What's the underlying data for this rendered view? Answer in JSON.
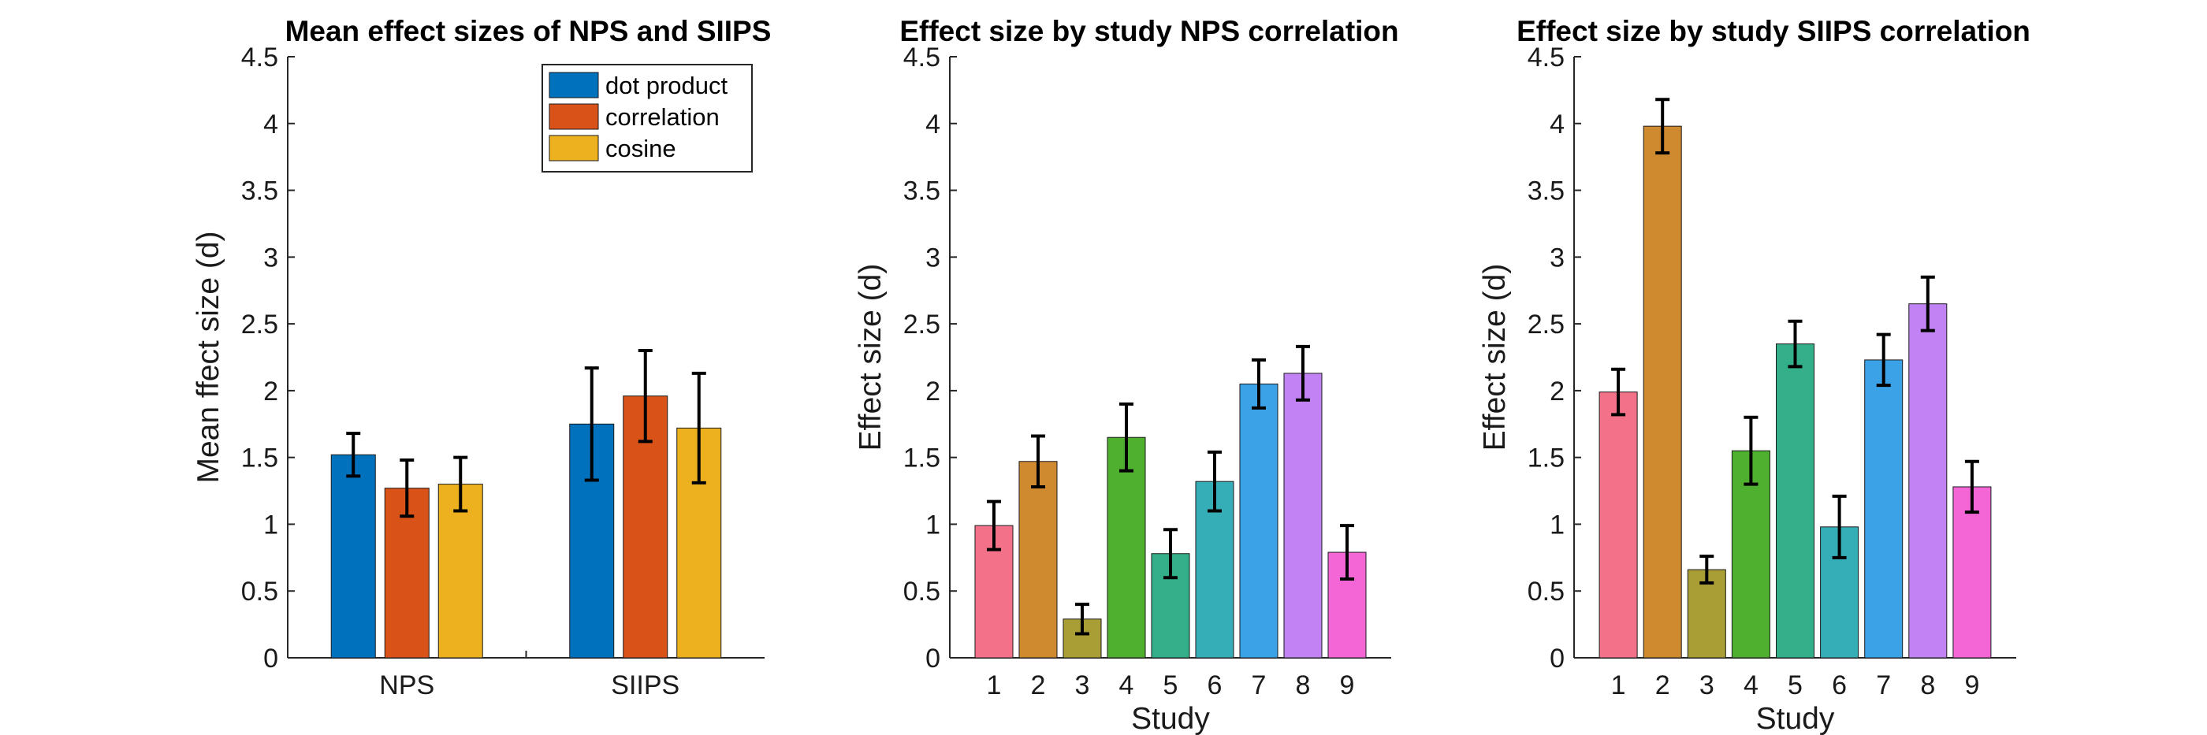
{
  "chart_data": [
    {
      "type": "bar",
      "title": "Mean effect sizes of NPS and SIIPS",
      "xlabel": "",
      "ylabel": "Mean ffect size (d)",
      "ylim": [
        0,
        4.5
      ],
      "yticks": [
        "0",
        "0.5",
        "1",
        "1.5",
        "2",
        "2.5",
        "3",
        "3.5",
        "4",
        "4.5"
      ],
      "categories": [
        "NPS",
        "SIIPS"
      ],
      "series": [
        {
          "name": "dot product",
          "color": "#0072BD",
          "values": [
            1.52,
            1.75
          ],
          "err": [
            0.16,
            0.42
          ]
        },
        {
          "name": "correlation",
          "color": "#D95319",
          "values": [
            1.27,
            1.96
          ],
          "err": [
            0.21,
            0.34
          ]
        },
        {
          "name": "cosine",
          "color": "#EDB120",
          "values": [
            1.3,
            1.72
          ],
          "err": [
            0.2,
            0.41
          ]
        }
      ],
      "legend": "top-right",
      "grid": false
    },
    {
      "type": "bar",
      "title": "Effect size by study NPS correlation",
      "xlabel": "Study",
      "ylabel": "Effect size (d)",
      "ylim": [
        0,
        4.5
      ],
      "yticks": [
        "0",
        "0.5",
        "1",
        "1.5",
        "2",
        "2.5",
        "3",
        "3.5",
        "4",
        "4.5"
      ],
      "categories": [
        "1",
        "2",
        "3",
        "4",
        "5",
        "6",
        "7",
        "8",
        "9"
      ],
      "values": [
        0.99,
        1.47,
        0.29,
        1.65,
        0.78,
        1.32,
        2.05,
        2.13,
        0.79
      ],
      "err": [
        0.18,
        0.19,
        0.11,
        0.25,
        0.18,
        0.22,
        0.18,
        0.2,
        0.2
      ],
      "colors": [
        "#F47289",
        "#CF8A30",
        "#A89E35",
        "#4FB030",
        "#33B08A",
        "#36AEB8",
        "#3CA2E8",
        "#C183F3",
        "#F466D6"
      ],
      "grid": false
    },
    {
      "type": "bar",
      "title": "Effect size by study SIIPS correlation",
      "xlabel": "Study",
      "ylabel": "Effect size (d)",
      "ylim": [
        0,
        4.5
      ],
      "yticks": [
        "0",
        "0.5",
        "1",
        "1.5",
        "2",
        "2.5",
        "3",
        "3.5",
        "4",
        "4.5"
      ],
      "categories": [
        "1",
        "2",
        "3",
        "4",
        "5",
        "6",
        "7",
        "8",
        "9"
      ],
      "values": [
        1.99,
        3.98,
        0.66,
        1.55,
        2.35,
        0.98,
        2.23,
        2.65,
        1.28
      ],
      "err": [
        0.17,
        0.2,
        0.1,
        0.25,
        0.17,
        0.23,
        0.19,
        0.2,
        0.19
      ],
      "colors": [
        "#F47289",
        "#CF8A30",
        "#A89E35",
        "#4FB030",
        "#33B08A",
        "#36AEB8",
        "#3CA2E8",
        "#C183F3",
        "#F466D6"
      ],
      "grid": false
    }
  ]
}
